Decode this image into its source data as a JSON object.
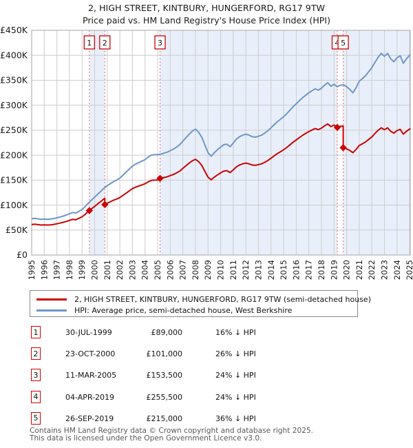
{
  "title": "2, HIGH STREET, KINTBURY, HUNGERFORD, RG17 9TW",
  "subtitle": "Price paid vs. HM Land Registry's House Price Index (HPI)",
  "legend": {
    "property_label": "2, HIGH STREET, KINTBURY, HUNGERFORD, RG17 9TW (semi-detached house)",
    "hpi_label": "HPI: Average price, semi-detached house, West Berkshire"
  },
  "footer": {
    "line1": "Contains HM Land Registry data © Crown copyright and database right 2025.",
    "line2": "This data is licensed under the Open Government Licence v3.0."
  },
  "chart_data": {
    "type": "line",
    "title": "2, HIGH STREET, KINTBURY, HUNGERFORD, RG17 9TW",
    "subtitle": "Price paid vs. HM Land Registry's House Price Index (HPI)",
    "xlabel": "",
    "ylabel": "",
    "grid": true,
    "legend_position": "bottom",
    "x_range": [
      1995,
      2025.05
    ],
    "y_max_k": 450,
    "y_ticks": [
      {
        "v": 0,
        "label": "£0"
      },
      {
        "v": 50,
        "label": "£50K"
      },
      {
        "v": 100,
        "label": "£100K"
      },
      {
        "v": 150,
        "label": "£150K"
      },
      {
        "v": 200,
        "label": "£200K"
      },
      {
        "v": 250,
        "label": "£250K"
      },
      {
        "v": 300,
        "label": "£300K"
      },
      {
        "v": 350,
        "label": "£350K"
      },
      {
        "v": 400,
        "label": "£400K"
      },
      {
        "v": 450,
        "label": "£450K"
      }
    ],
    "x_ticks": [
      1995,
      1996,
      1997,
      1998,
      1999,
      2000,
      2001,
      2002,
      2003,
      2004,
      2005,
      2006,
      2007,
      2008,
      2009,
      2010,
      2011,
      2012,
      2013,
      2014,
      2015,
      2016,
      2017,
      2018,
      2019,
      2020,
      2021,
      2022,
      2023,
      2024,
      2025
    ],
    "colors": {
      "price_line": "#cc0000",
      "hpi_line": "#6d96c8",
      "grid": "#cccccc",
      "border": "#a3a3ab",
      "sale_dash": "#e56a6a",
      "ownership_band": "#e9effa",
      "marker_box_border": "#cc0000"
    },
    "hpi_units": "GBP_thousands",
    "hpi_points": [
      [
        1995,
        72.5
      ],
      [
        1995.25,
        73.5
      ],
      [
        1995.5,
        72.5
      ],
      [
        1995.75,
        71.5
      ],
      [
        1996,
        72
      ],
      [
        1996.25,
        71.5
      ],
      [
        1996.5,
        72
      ],
      [
        1996.75,
        73
      ],
      [
        1997,
        74.5
      ],
      [
        1997.25,
        76
      ],
      [
        1997.5,
        78
      ],
      [
        1997.75,
        80
      ],
      [
        1998,
        82.5
      ],
      [
        1998.25,
        85
      ],
      [
        1998.5,
        84
      ],
      [
        1998.75,
        87.5
      ],
      [
        1999,
        91
      ],
      [
        1999.25,
        97
      ],
      [
        1999.5,
        104
      ],
      [
        1999.75,
        110
      ],
      [
        2000,
        116
      ],
      [
        2000.25,
        122
      ],
      [
        2000.5,
        128
      ],
      [
        2000.75,
        134
      ],
      [
        2001,
        139
      ],
      [
        2001.25,
        143
      ],
      [
        2001.5,
        147
      ],
      [
        2001.75,
        150
      ],
      [
        2002,
        154
      ],
      [
        2002.25,
        160
      ],
      [
        2002.5,
        166
      ],
      [
        2002.75,
        172
      ],
      [
        2003,
        178
      ],
      [
        2003.25,
        182
      ],
      [
        2003.5,
        185
      ],
      [
        2003.75,
        188
      ],
      [
        2004,
        191
      ],
      [
        2004.25,
        196
      ],
      [
        2004.5,
        200
      ],
      [
        2004.75,
        201
      ],
      [
        2005,
        201
      ],
      [
        2005.25,
        202
      ],
      [
        2005.5,
        204
      ],
      [
        2005.75,
        206
      ],
      [
        2006,
        209
      ],
      [
        2006.25,
        212
      ],
      [
        2006.5,
        216
      ],
      [
        2006.75,
        221
      ],
      [
        2007,
        228
      ],
      [
        2007.25,
        235
      ],
      [
        2007.5,
        242
      ],
      [
        2007.75,
        248
      ],
      [
        2008,
        252
      ],
      [
        2008.25,
        246
      ],
      [
        2008.5,
        236
      ],
      [
        2008.75,
        220
      ],
      [
        2009,
        205
      ],
      [
        2009.25,
        198
      ],
      [
        2009.5,
        205
      ],
      [
        2009.75,
        211
      ],
      [
        2010,
        216
      ],
      [
        2010.25,
        221
      ],
      [
        2010.5,
        222
      ],
      [
        2010.75,
        217
      ],
      [
        2011,
        224
      ],
      [
        2011.25,
        232
      ],
      [
        2011.5,
        237
      ],
      [
        2011.75,
        240
      ],
      [
        2012,
        242
      ],
      [
        2012.25,
        240
      ],
      [
        2012.5,
        237
      ],
      [
        2012.75,
        236
      ],
      [
        2013,
        238
      ],
      [
        2013.25,
        240
      ],
      [
        2013.5,
        244
      ],
      [
        2013.75,
        249
      ],
      [
        2014,
        255
      ],
      [
        2014.25,
        261
      ],
      [
        2014.5,
        267
      ],
      [
        2014.75,
        272
      ],
      [
        2015,
        277
      ],
      [
        2015.25,
        283
      ],
      [
        2015.5,
        290
      ],
      [
        2015.75,
        297
      ],
      [
        2016,
        303
      ],
      [
        2016.25,
        309
      ],
      [
        2016.5,
        315
      ],
      [
        2016.75,
        320
      ],
      [
        2017,
        325
      ],
      [
        2017.25,
        329
      ],
      [
        2017.5,
        333
      ],
      [
        2017.75,
        330
      ],
      [
        2018,
        334
      ],
      [
        2018.25,
        340
      ],
      [
        2018.5,
        345
      ],
      [
        2018.75,
        338
      ],
      [
        2019,
        342
      ],
      [
        2019.25,
        337
      ],
      [
        2019.5,
        340
      ],
      [
        2019.75,
        341
      ],
      [
        2020,
        337
      ],
      [
        2020.25,
        332
      ],
      [
        2020.5,
        325
      ],
      [
        2020.75,
        335
      ],
      [
        2021,
        348
      ],
      [
        2021.25,
        353
      ],
      [
        2021.5,
        359
      ],
      [
        2021.75,
        367
      ],
      [
        2022,
        375
      ],
      [
        2022.25,
        386
      ],
      [
        2022.5,
        396
      ],
      [
        2022.75,
        404
      ],
      [
        2023,
        398
      ],
      [
        2023.25,
        404
      ],
      [
        2023.5,
        393
      ],
      [
        2023.75,
        387
      ],
      [
        2024,
        395
      ],
      [
        2024.25,
        399
      ],
      [
        2024.5,
        384
      ],
      [
        2024.75,
        393
      ],
      [
        2025,
        400
      ],
      [
        2025.05,
        402
      ]
    ],
    "sales": [
      {
        "num": "1",
        "date": "30-JUL-1999",
        "year": 1999.58,
        "price": 89000,
        "price_label": "£89,000",
        "hpi_diff": "16% ↓ HPI"
      },
      {
        "num": "2",
        "date": "23-OCT-2000",
        "year": 2000.81,
        "price": 101000,
        "price_label": "£101,000",
        "hpi_diff": "26% ↓ HPI"
      },
      {
        "num": "3",
        "date": "11-MAR-2005",
        "year": 2005.19,
        "price": 153500,
        "price_label": "£153,500",
        "hpi_diff": "24% ↓ HPI"
      },
      {
        "num": "4",
        "date": "04-APR-2019",
        "year": 2019.26,
        "price": 255500,
        "price_label": "£255,500",
        "hpi_diff": "24% ↓ HPI"
      },
      {
        "num": "5",
        "date": "26-SEP-2019",
        "year": 2019.73,
        "price": 215000,
        "price_label": "£215,000",
        "hpi_diff": "36% ↓ HPI"
      }
    ]
  }
}
